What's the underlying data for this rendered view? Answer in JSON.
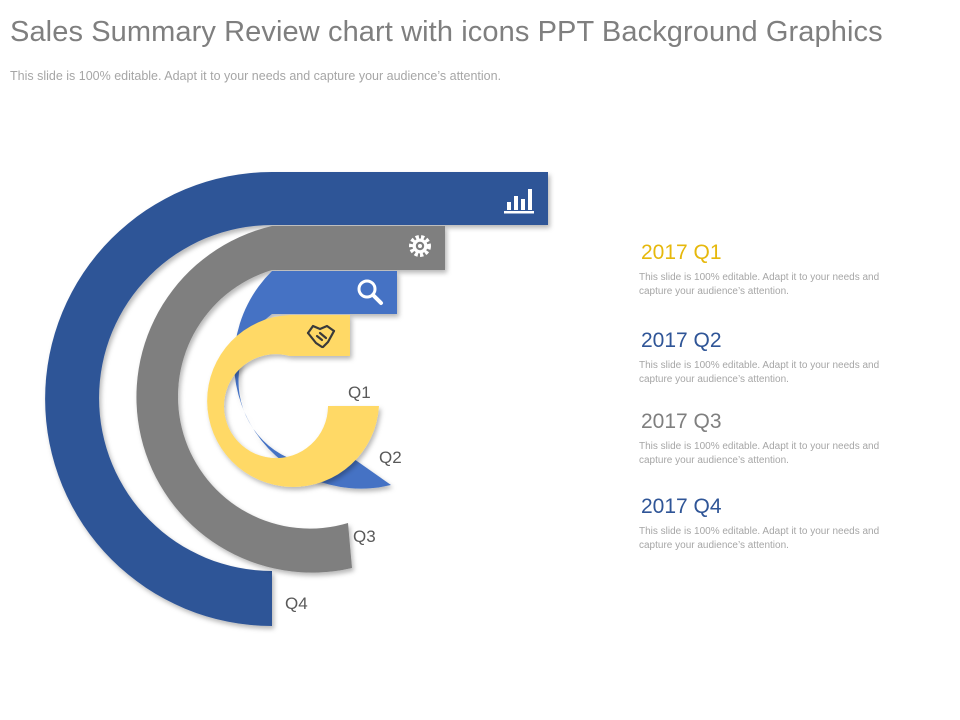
{
  "title": "Sales Summary Review chart with icons PPT Background Graphics",
  "subtitle": "This slide is 100% editable. Adapt it to your needs and capture your audience’s attention.",
  "colors": {
    "q1": "#ffd966",
    "q2": "#4472c4",
    "q3": "#7f7f7f",
    "q4": "#2f5597",
    "title": "#7f7f7f"
  },
  "rings": [
    {
      "label": "Q1",
      "icon": "handshake-icon"
    },
    {
      "label": "Q2",
      "icon": "search-icon"
    },
    {
      "label": "Q3",
      "icon": "gear-icon"
    },
    {
      "label": "Q4",
      "icon": "bar-chart-icon"
    }
  ],
  "legend": [
    {
      "heading": "2017 Q1",
      "color": "#e6b80c",
      "text": "This slide is 100% editable. Adapt it to your needs and capture your audience’s attention."
    },
    {
      "heading": "2017 Q2",
      "color": "#2f5597",
      "text": "This slide is 100% editable. Adapt it to your needs and capture your audience’s attention."
    },
    {
      "heading": "2017 Q3",
      "color": "#7f7f7f",
      "text": "This slide is 100% editable. Adapt it to your needs and capture your audience’s attention."
    },
    {
      "heading": "2017 Q4",
      "color": "#2f5597",
      "text": "This slide is 100% editable. Adapt it to your needs and capture your audience’s attention."
    }
  ]
}
